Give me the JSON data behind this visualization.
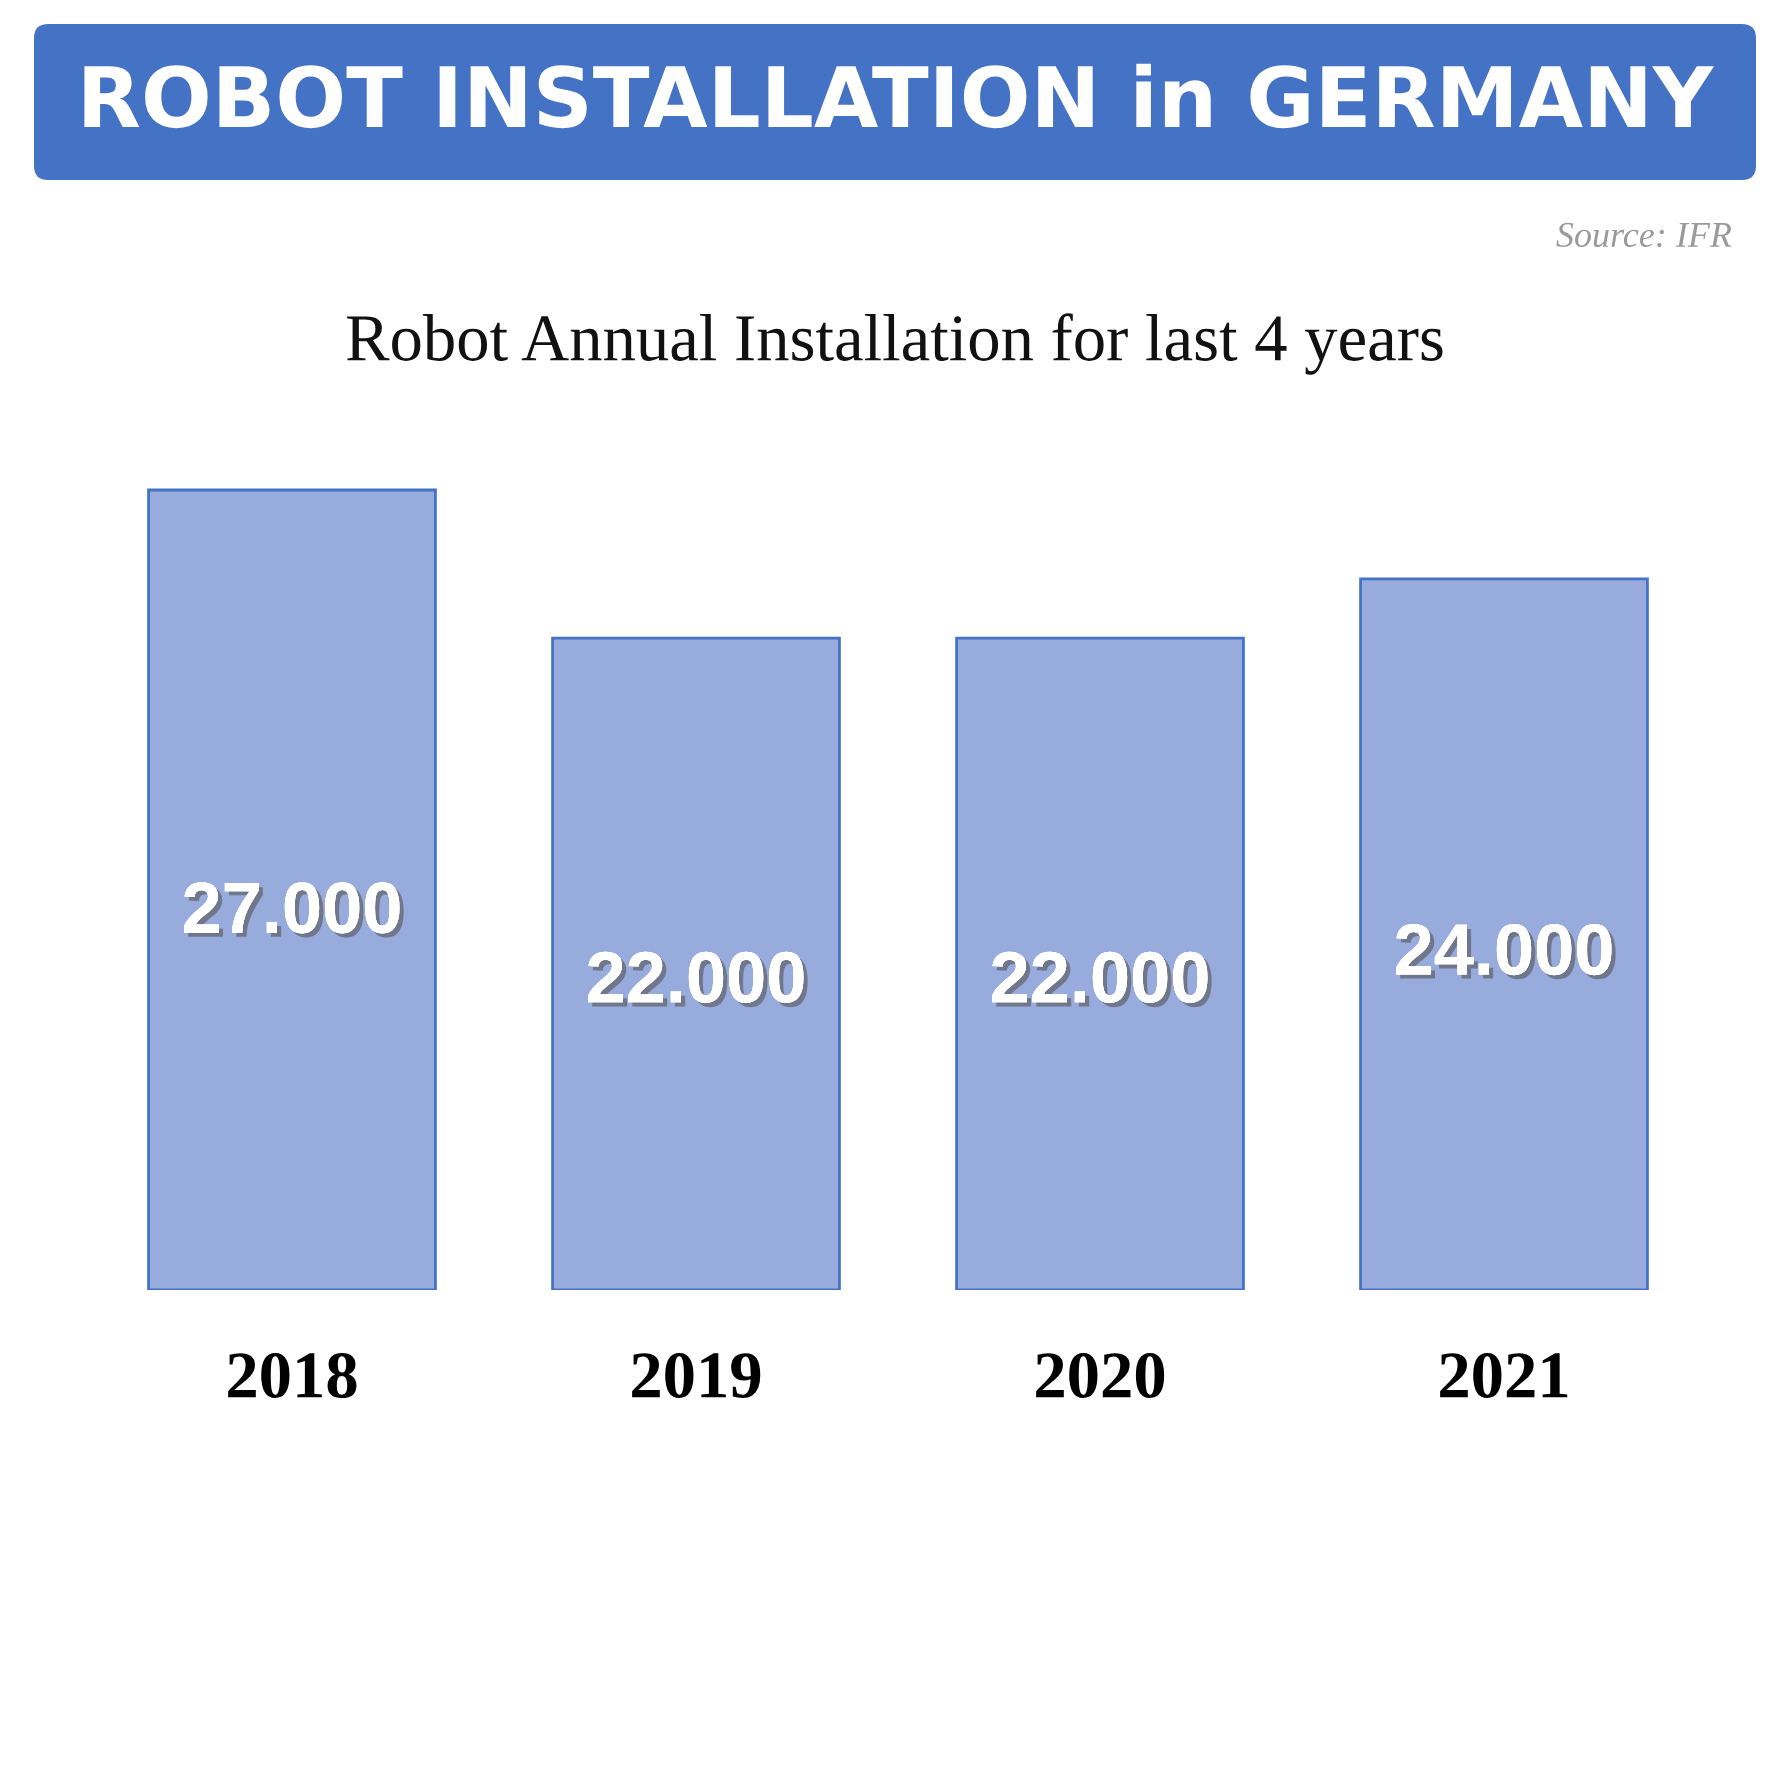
{
  "chart_data": {
    "type": "bar",
    "title": "ROBOT INSTALLATION in GERMANY",
    "subtitle": "Robot Annual Installation for last 4 years",
    "annotations": [
      "Source: IFR"
    ],
    "categories": [
      "2018",
      "2019",
      "2020",
      "2021"
    ],
    "values": [
      27000,
      22000,
      22000,
      24000
    ],
    "value_labels": [
      "27.000",
      "22.000",
      "22.000",
      "24.000"
    ],
    "color": "#98abdd",
    "tick_labels": "x"
  }
}
